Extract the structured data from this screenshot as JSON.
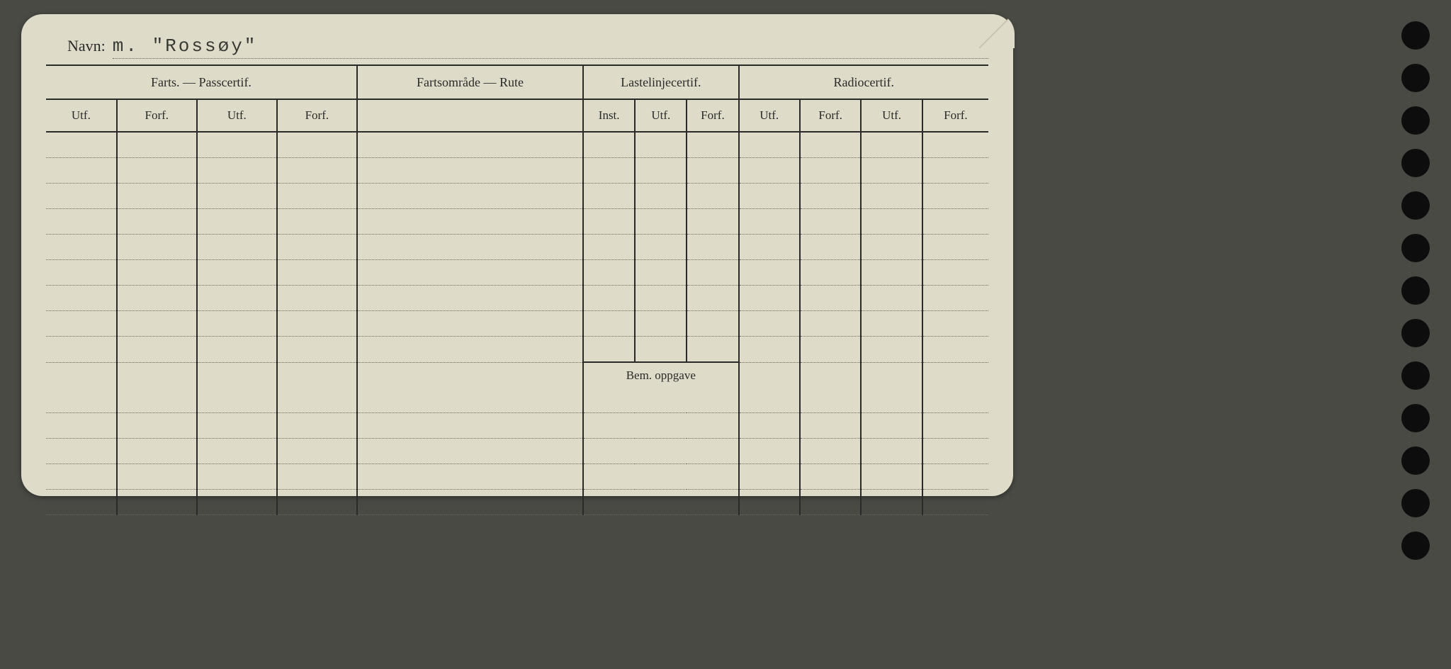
{
  "card": {
    "name_label": "Navn:",
    "name_value": "m. \"Rossøy\"",
    "sections": {
      "farts_pass": "Farts. — Passcertif.",
      "fartsomrade": "Fartsområde — Rute",
      "lastelinje": "Lastelinjecertif.",
      "radio": "Radiocertif."
    },
    "sub": {
      "utf": "Utf.",
      "forf": "Forf.",
      "inst": "Inst."
    },
    "bem_oppgave": "Bem. oppgave",
    "column_widths_pct": [
      7.5,
      8.5,
      8.5,
      8.5,
      24.0,
      5.5,
      5.5,
      5.5,
      6.5,
      6.5,
      6.5,
      7.0
    ],
    "data_rows_above_bem": 9,
    "data_rows_below_bem": 5,
    "colors": {
      "paper": "#dedcc8",
      "ink": "#2a2a2a",
      "dotted": "#6a6a60",
      "background": "#4a4a45",
      "hole": "#0d0d0d"
    },
    "punch_holes": 13
  }
}
